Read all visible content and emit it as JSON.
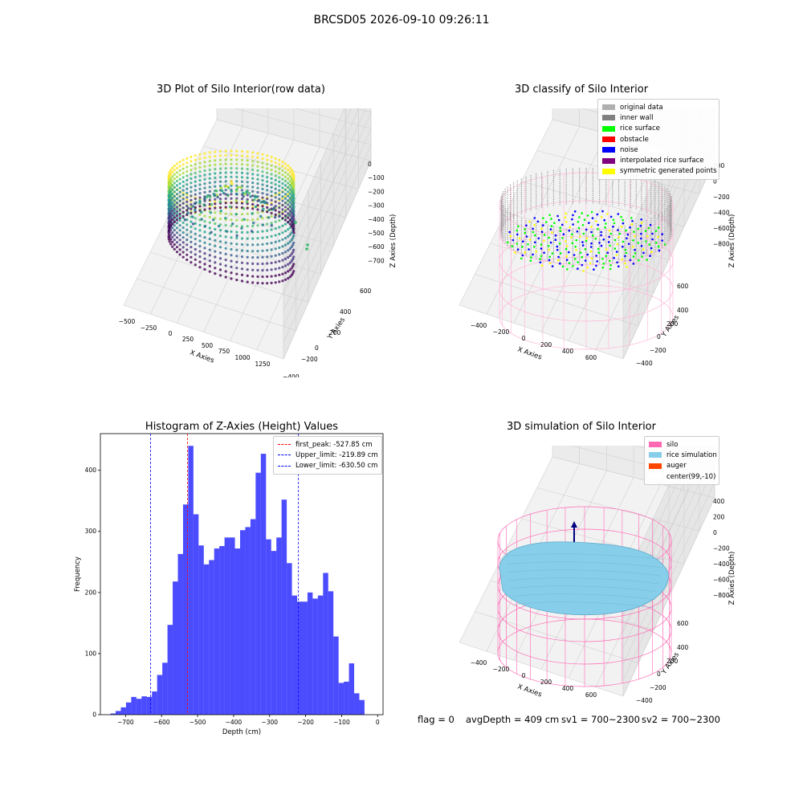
{
  "page": {
    "suptitle": "BRCSD05 2026-09-10 09:26:11",
    "status_line": {
      "flag": "flag = 0",
      "avg": "avgDepth = 409 cm",
      "sv1": "sv1 = 700~2300",
      "sv2": "sv2 = 700~2300"
    }
  },
  "chart_data": [
    {
      "type": "scatter",
      "projection": "3d",
      "title": "3D Plot of Silo Interior(row data)",
      "xlabel": "X Axies",
      "ylabel": "Y Axies",
      "zlabel": "Z Axies (Depth)",
      "xticks": [
        "−500",
        "−250",
        "0",
        "250",
        "500",
        "750",
        "1000",
        "1250"
      ],
      "yticks": [
        "600",
        "400",
        "200",
        "0",
        "−200",
        "−400",
        "−600"
      ],
      "zticks": [
        "0",
        "−100",
        "−200",
        "−300",
        "−400",
        "−500",
        "−600",
        "−700"
      ],
      "colormap": "viridis",
      "outlier_points": [
        [
          1250,
          100,
          -380
        ],
        [
          1300,
          0,
          -480
        ],
        [
          1300,
          -100,
          -500
        ]
      ]
    },
    {
      "type": "scatter",
      "projection": "3d",
      "title": "3D classify of Silo Interior",
      "xlabel": "X Axies",
      "ylabel": "Y Axies",
      "zlabel": "Z Axies (Depth)",
      "xticks": [
        "−400",
        "−200",
        "0",
        "200",
        "400",
        "600"
      ],
      "yticks": [
        "600",
        "400",
        "200",
        "0",
        "−200",
        "−400",
        "−600"
      ],
      "zticks": [
        "200",
        "0",
        "−200",
        "−400",
        "−600",
        "−800"
      ],
      "legend": [
        {
          "label": "original data",
          "color": "#b0b0b0"
        },
        {
          "label": "inner wall",
          "color": "#808080"
        },
        {
          "label": "rice surface",
          "color": "#00ff00"
        },
        {
          "label": "obstacle",
          "color": "#ff0000"
        },
        {
          "label": "noise",
          "color": "#0000ff"
        },
        {
          "label": "interpolated rice surface",
          "color": "#800080"
        },
        {
          "label": "symmetric generated points",
          "color": "#ffff00"
        }
      ]
    },
    {
      "type": "bar",
      "title": "Histogram of Z-Axies (Height) Values",
      "xlabel": "Depth (cm)",
      "ylabel": "Frequency",
      "xlim": [
        -770,
        15
      ],
      "ylim": [
        0,
        460
      ],
      "xticks": [
        -700,
        -600,
        -500,
        -400,
        -300,
        -200,
        -100,
        0
      ],
      "xtick_labels": [
        "−700",
        "−600",
        "−500",
        "−400",
        "−300",
        "−200",
        "−100",
        "0"
      ],
      "yticks": [
        0,
        100,
        200,
        300,
        400
      ],
      "bin_start": -742,
      "bin_width": 14.4,
      "values": [
        2,
        6,
        12,
        20,
        29,
        26,
        30,
        29,
        38,
        65,
        85,
        147,
        218,
        263,
        344,
        440,
        328,
        277,
        246,
        253,
        272,
        276,
        290,
        290,
        272,
        302,
        307,
        320,
        396,
        427,
        287,
        268,
        290,
        352,
        248,
        195,
        185,
        185,
        200,
        190,
        195,
        232,
        202,
        128,
        52,
        54,
        84,
        35,
        24
      ],
      "bar_color": "#0000ff",
      "vlines": [
        {
          "label": "first_peak: -527.85 cm",
          "x": -527.85,
          "color": "#ff0000"
        },
        {
          "label": "Upper_limit: -219.89 cm",
          "x": -219.89,
          "color": "#0000ff"
        },
        {
          "label": "Lower_limit: -630.50 cm",
          "x": -630.5,
          "color": "#0000ff"
        }
      ]
    },
    {
      "type": "surface",
      "projection": "3d",
      "title": "3D simulation of Silo Interior",
      "xlabel": "X Axies",
      "ylabel": "Y Axies",
      "zlabel": "Z Axies (Depth)",
      "xticks": [
        "−400",
        "−200",
        "0",
        "200",
        "400",
        "600"
      ],
      "yticks": [
        "600",
        "400",
        "200",
        "0",
        "−200",
        "−400",
        "−600"
      ],
      "zticks": [
        "400",
        "200",
        "0",
        "−200",
        "−400",
        "−600",
        "−800"
      ],
      "legend": [
        {
          "label": "silo",
          "color": "#ff69b4"
        },
        {
          "label": "rice simulation",
          "color": "#87ceeb"
        },
        {
          "label": "auger",
          "color": "#ff4500"
        },
        {
          "label": "center(99,-10)",
          "color": "#ffffff"
        }
      ]
    }
  ]
}
